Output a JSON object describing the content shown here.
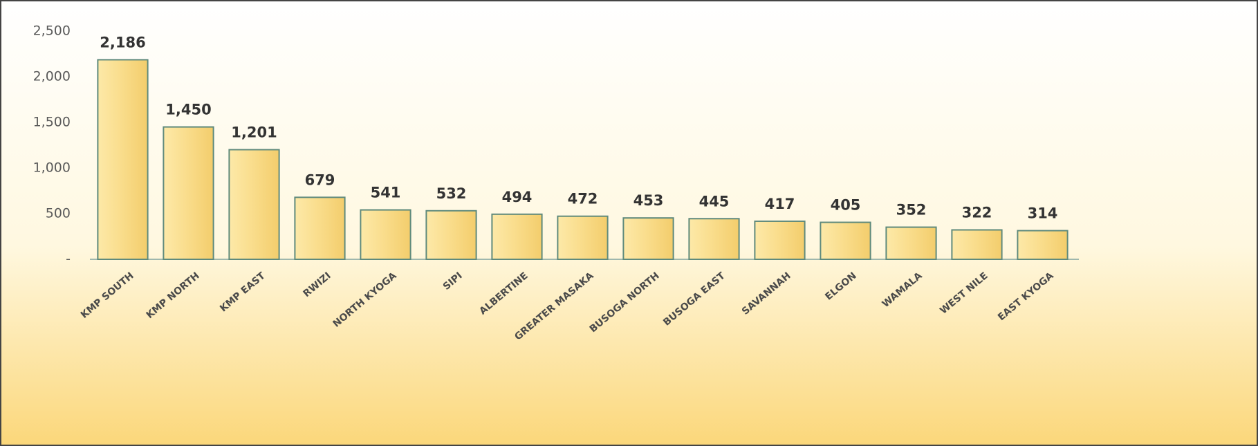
{
  "chart_data": {
    "type": "bar",
    "categories": [
      "KMP SOUTH",
      "KMP NORTH",
      "KMP EAST",
      "RWIZI",
      "NORTH KYOGA",
      "SIPI",
      "ALBERTINE",
      "GREATER MASAKA",
      "BUSOGA NORTH",
      "BUSOGA EAST",
      "SAVANNAH",
      "ELGON",
      "WAMALA",
      "WEST NILE",
      "EAST KYOGA"
    ],
    "values": [
      2186,
      1450,
      1201,
      679,
      541,
      532,
      494,
      472,
      453,
      445,
      417,
      405,
      352,
      322,
      314
    ],
    "value_labels": [
      "2,186",
      "1,450",
      "1,201",
      "679",
      "541",
      "532",
      "494",
      "472",
      "453",
      "445",
      "417",
      "405",
      "352",
      "322",
      "314"
    ],
    "color": "#f9dc8a",
    "ylim": [
      0,
      2500
    ],
    "yticks": [
      {
        "value": 0,
        "label": "-"
      },
      500,
      {
        "value": 1000,
        "label": "1,000"
      },
      {
        "value": 1500,
        "label": "1,500"
      },
      {
        "value": 2000,
        "label": "2,000"
      },
      {
        "value": 2500,
        "label": "2,500"
      }
    ],
    "grid": false
  }
}
